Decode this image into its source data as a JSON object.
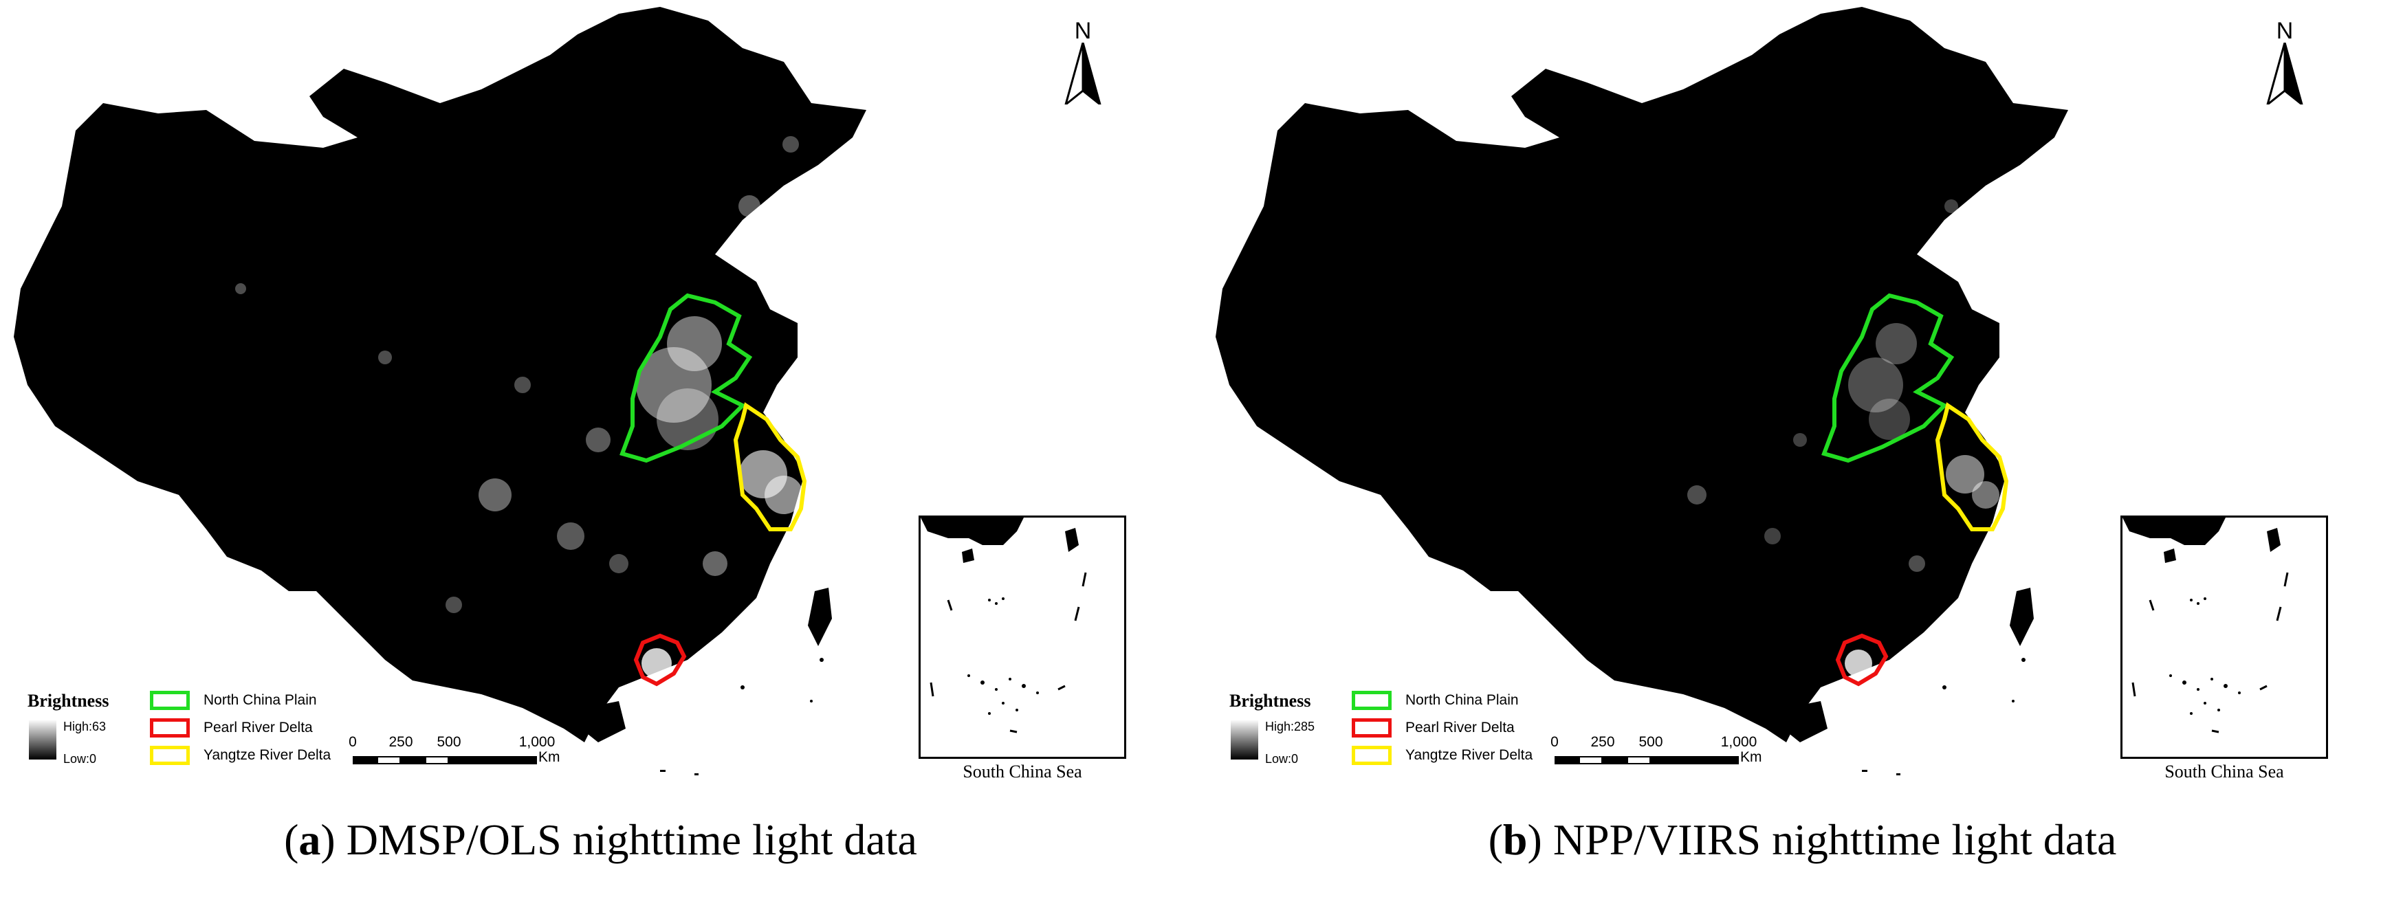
{
  "panels": [
    {
      "id": "a",
      "caption_letter": "a",
      "caption_text": " DMSP/OLS nighttime light data",
      "legend": {
        "title": "Brightness",
        "high": "High:63",
        "low": "Low:0"
      },
      "max_brightness": 63
    },
    {
      "id": "b",
      "caption_letter": "b",
      "caption_text": " NPP/VIIRS nighttime light data",
      "legend": {
        "title": "Brightness",
        "high": "High:285",
        "low": "Low:0"
      },
      "max_brightness": 285
    }
  ],
  "regions": [
    {
      "name": "North China Plain",
      "color": "#22dd22"
    },
    {
      "name": "Pearl River Delta",
      "color": "#ee1111"
    },
    {
      "name": "Yangtze River Delta",
      "color": "#ffee00"
    }
  ],
  "scale_bar": {
    "ticks": [
      "0",
      "250",
      "500",
      "1,000"
    ],
    "unit": "Km"
  },
  "north_arrow": {
    "label": "N",
    "icon": "north-arrow-icon"
  },
  "inset": {
    "label": "South China Sea"
  },
  "colors": {
    "land": "#000000",
    "lights": "#ffffff",
    "background": "#ffffff"
  }
}
